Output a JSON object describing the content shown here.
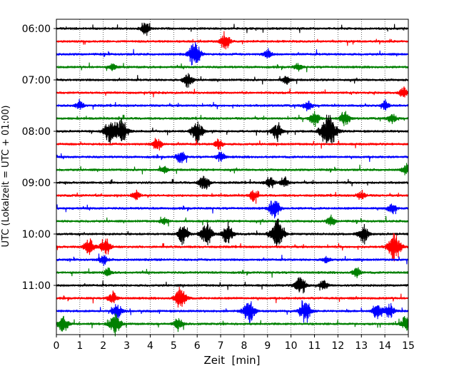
{
  "chart_data": {
    "type": "line",
    "title": "",
    "xlabel": "Zeit  [min]",
    "ylabel": "UTC (Lokalzeit = UTC + 01:00)",
    "xlim": [
      0,
      15
    ],
    "x_ticks": [
      "0",
      "1",
      "2",
      "3",
      "4",
      "5",
      "6",
      "7",
      "8",
      "9",
      "10",
      "11",
      "12",
      "13",
      "14",
      "15"
    ],
    "y_ticks": [
      {
        "label": "06:00",
        "trace_index": 0
      },
      {
        "label": "07:00",
        "trace_index": 4
      },
      {
        "label": "08:00",
        "trace_index": 8
      },
      {
        "label": "09:00",
        "trace_index": 12
      },
      {
        "label": "10:00",
        "trace_index": 16
      },
      {
        "label": "11:00",
        "trace_index": 20
      }
    ],
    "grid": "vertical dotted at each minute",
    "trace_interval_minutes": 15,
    "colors": [
      "#000000",
      "#ff0000",
      "#0000ff",
      "#008000"
    ],
    "traces": [
      {
        "start": "06:00",
        "color": "#000000",
        "events": [
          [
            3.8,
            0.5
          ]
        ]
      },
      {
        "start": "06:15",
        "color": "#ff0000",
        "events": [
          [
            7.2,
            0.6
          ]
        ]
      },
      {
        "start": "06:30",
        "color": "#0000ff",
        "events": [
          [
            5.9,
            1.0
          ],
          [
            9.0,
            0.4
          ]
        ]
      },
      {
        "start": "06:45",
        "color": "#008000",
        "events": [
          [
            2.4,
            0.3
          ],
          [
            10.3,
            0.3
          ]
        ]
      },
      {
        "start": "07:00",
        "color": "#000000",
        "events": [
          [
            5.6,
            0.6
          ],
          [
            9.8,
            0.3
          ]
        ]
      },
      {
        "start": "07:15",
        "color": "#ff0000",
        "events": [
          [
            14.8,
            0.4
          ]
        ]
      },
      {
        "start": "07:30",
        "color": "#0000ff",
        "events": [
          [
            1.0,
            0.4
          ],
          [
            10.7,
            0.4
          ],
          [
            14.0,
            0.4
          ]
        ]
      },
      {
        "start": "07:45",
        "color": "#008000",
        "events": [
          [
            11.0,
            0.6
          ],
          [
            12.3,
            0.6
          ],
          [
            14.3,
            0.4
          ]
        ]
      },
      {
        "start": "08:00",
        "color": "#000000",
        "events": [
          [
            2.3,
            1.0
          ],
          [
            2.8,
            0.9
          ],
          [
            6.0,
            0.9
          ],
          [
            9.4,
            0.7
          ],
          [
            11.6,
            1.5
          ]
        ]
      },
      {
        "start": "08:15",
        "color": "#ff0000",
        "events": [
          [
            4.3,
            0.5
          ],
          [
            6.9,
            0.4
          ]
        ]
      },
      {
        "start": "08:30",
        "color": "#0000ff",
        "events": [
          [
            5.3,
            0.5
          ],
          [
            7.0,
            0.4
          ]
        ]
      },
      {
        "start": "08:45",
        "color": "#008000",
        "events": [
          [
            4.6,
            0.3
          ],
          [
            14.9,
            0.4
          ]
        ]
      },
      {
        "start": "09:00",
        "color": "#000000",
        "events": [
          [
            6.3,
            0.7
          ],
          [
            9.1,
            0.5
          ],
          [
            9.7,
            0.4
          ]
        ]
      },
      {
        "start": "09:15",
        "color": "#ff0000",
        "events": [
          [
            3.4,
            0.4
          ],
          [
            8.4,
            0.4
          ],
          [
            13.0,
            0.4
          ]
        ]
      },
      {
        "start": "09:30",
        "color": "#0000ff",
        "events": [
          [
            9.3,
            0.8
          ],
          [
            14.3,
            0.4
          ]
        ]
      },
      {
        "start": "09:45",
        "color": "#008000",
        "events": [
          [
            4.6,
            0.3
          ],
          [
            11.7,
            0.4
          ]
        ]
      },
      {
        "start": "10:00",
        "color": "#000000",
        "events": [
          [
            5.4,
            0.8
          ],
          [
            6.4,
            0.9
          ],
          [
            7.3,
            0.8
          ],
          [
            9.4,
            1.2
          ],
          [
            13.1,
            0.7
          ]
        ]
      },
      {
        "start": "10:15",
        "color": "#ff0000",
        "events": [
          [
            1.4,
            0.7
          ],
          [
            2.1,
            0.7
          ],
          [
            14.4,
            1.1
          ]
        ]
      },
      {
        "start": "10:30",
        "color": "#0000ff",
        "events": [
          [
            2.0,
            0.4
          ],
          [
            11.5,
            0.3
          ]
        ]
      },
      {
        "start": "10:45",
        "color": "#008000",
        "events": [
          [
            2.2,
            0.3
          ],
          [
            12.8,
            0.4
          ]
        ]
      },
      {
        "start": "11:00",
        "color": "#000000",
        "events": [
          [
            10.4,
            0.8
          ],
          [
            11.4,
            0.4
          ]
        ]
      },
      {
        "start": "11:15",
        "color": "#ff0000",
        "events": [
          [
            2.4,
            0.5
          ],
          [
            5.3,
            0.9
          ]
        ]
      },
      {
        "start": "11:30",
        "color": "#0000ff",
        "events": [
          [
            2.6,
            0.6
          ],
          [
            8.2,
            0.9
          ],
          [
            10.6,
            0.9
          ],
          [
            13.7,
            0.7
          ],
          [
            14.2,
            0.6
          ]
        ]
      },
      {
        "start": "11:45",
        "color": "#008000",
        "events": [
          [
            0.3,
            0.7
          ],
          [
            2.5,
            0.9
          ],
          [
            5.2,
            0.5
          ],
          [
            14.9,
            0.6
          ]
        ]
      }
    ]
  }
}
